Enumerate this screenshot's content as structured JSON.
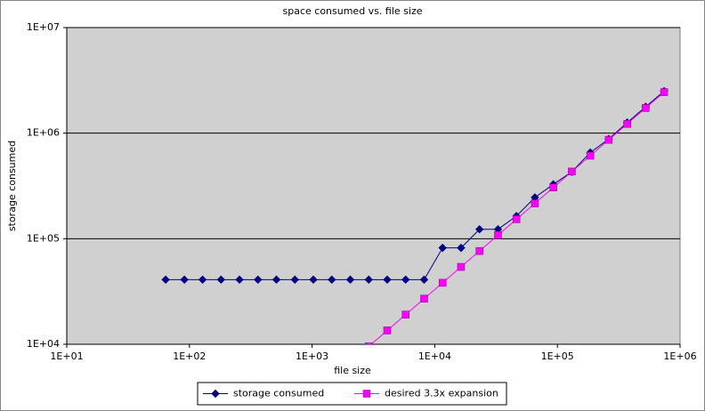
{
  "chart_data": {
    "type": "line",
    "title": "space consumed vs. file size",
    "xlabel": "file size",
    "ylabel": "storage consumed",
    "log_x": true,
    "log_y": true,
    "grid": true,
    "legend": "bottom",
    "x": [
      64,
      91,
      128,
      181,
      256,
      362,
      512,
      724,
      1024,
      1448,
      2048,
      2896,
      4096,
      5793,
      8192,
      11585,
      16384,
      23170,
      32768,
      46341,
      65536,
      92682,
      131072,
      185364,
      262144,
      370728,
      524288,
      741455
    ],
    "series": [
      {
        "name": "storage consumed",
        "color": "#000080",
        "marker": "diamond",
        "values": [
          40960,
          40960,
          40960,
          40960,
          40960,
          40960,
          40960,
          40960,
          40960,
          40960,
          40960,
          40960,
          40960,
          40960,
          40960,
          81920,
          81920,
          122880,
          122880,
          163840,
          245760,
          327680,
          430080,
          655360,
          880640,
          1260000,
          1780000,
          2500000
        ]
      },
      {
        "name": "desired 3.3x expansion",
        "color": "#ff00ff",
        "marker": "square",
        "values": [
          null,
          null,
          null,
          null,
          null,
          null,
          null,
          null,
          null,
          null,
          null,
          9557,
          13517,
          19117,
          27034,
          38231,
          54067,
          76461,
          108134,
          152925,
          216269,
          305851,
          432538,
          611701,
          865075,
          1223402,
          1730150,
          2446802
        ]
      }
    ],
    "xlim": [
      10,
      1000000
    ],
    "xticks": [
      {
        "value": 10,
        "label": "1E+01"
      },
      {
        "value": 100,
        "label": "1E+02"
      },
      {
        "value": 1000,
        "label": "1E+03"
      },
      {
        "value": 10000,
        "label": "1E+04"
      },
      {
        "value": 100000,
        "label": "1E+05"
      },
      {
        "value": 1000000,
        "label": "1E+06"
      }
    ],
    "ylim": [
      10000,
      10000000
    ],
    "yticks": [
      {
        "value": 10000,
        "label": "1E+04"
      },
      {
        "value": 100000,
        "label": "1E+05"
      },
      {
        "value": 1000000,
        "label": "1E+06"
      },
      {
        "value": 10000000,
        "label": "1E+07"
      }
    ]
  }
}
